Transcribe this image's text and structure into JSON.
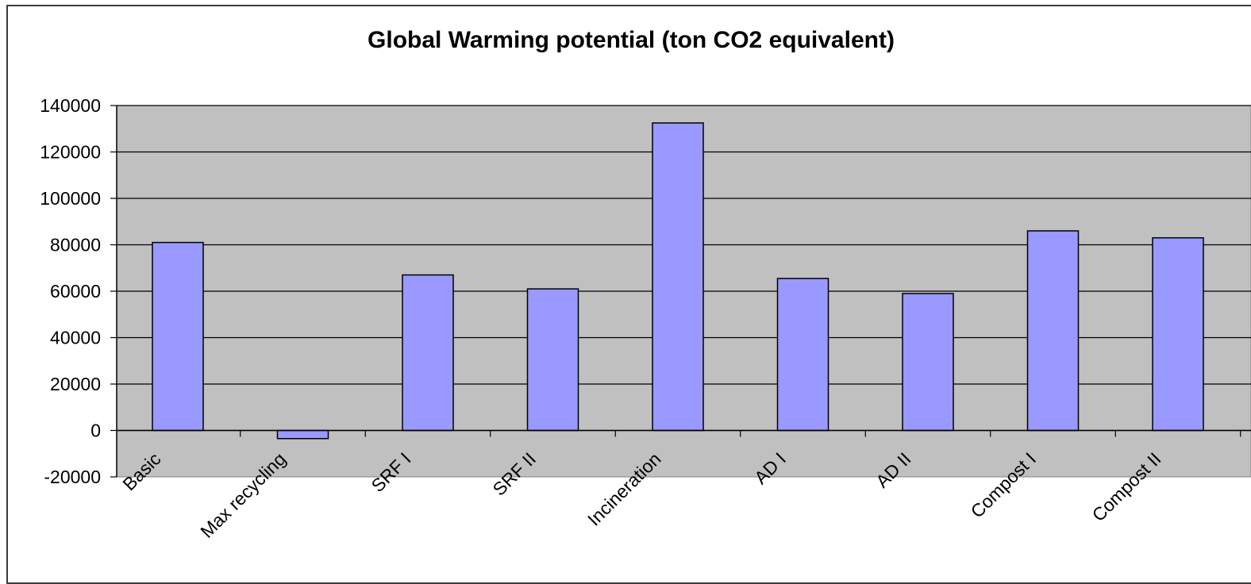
{
  "chart_data": {
    "type": "bar",
    "title": "Global Warming potential (ton CO2 equivalent)",
    "categories": [
      "Basic",
      "Max recycling",
      "SRF I",
      "SRF II",
      "Incineration",
      "AD I",
      "AD II",
      "Compost I",
      "Compost II"
    ],
    "values": [
      81000,
      -3500,
      67000,
      61000,
      132500,
      65500,
      59000,
      86000,
      83000
    ],
    "xlabel": "",
    "ylabel": "",
    "ylim": [
      -20000,
      140000
    ],
    "yticks": [
      "140000",
      "120000",
      "100000",
      "80000",
      "60000",
      "40000",
      "20000",
      "0",
      "-20000"
    ],
    "grid": true,
    "legend": "none",
    "colors": {
      "bar_fill": "#9999ff",
      "bar_stroke": "#000000",
      "plot_background": "#c0c0c0",
      "gridline": "#000000"
    }
  }
}
